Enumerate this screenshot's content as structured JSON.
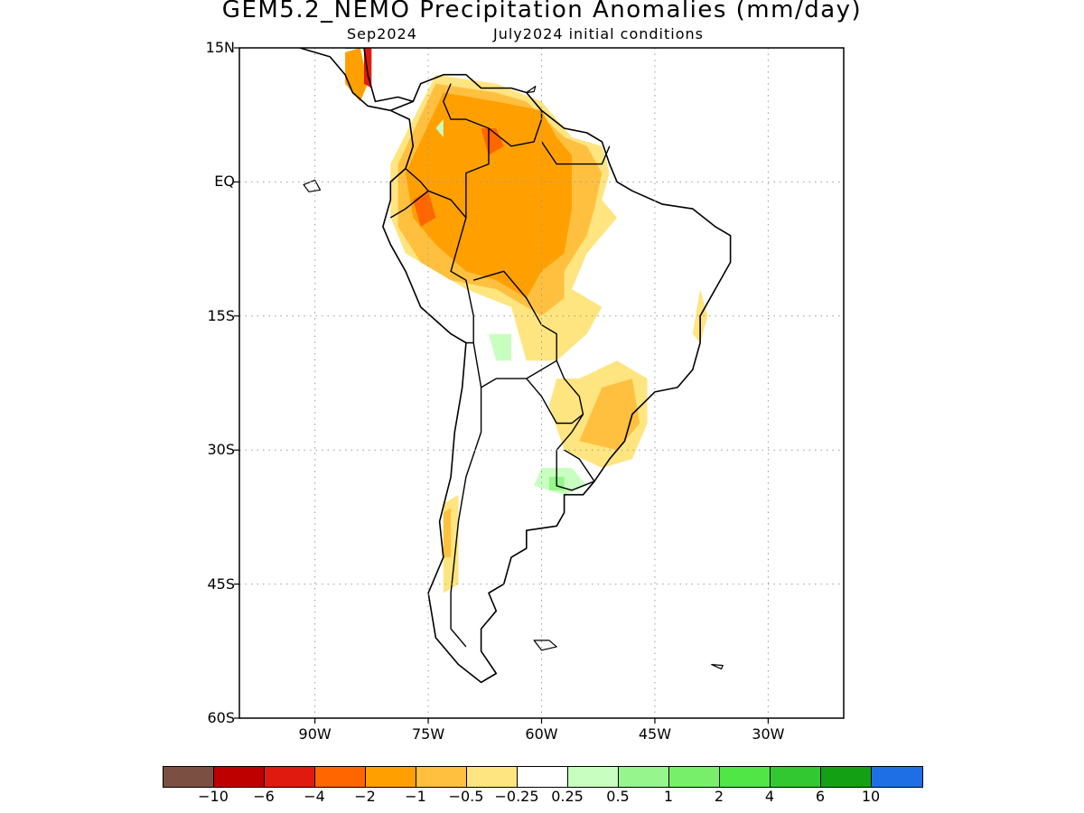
{
  "title": "GEM5.2_NEMO Precipitation Anomalies (mm/day)",
  "subtitle_month": "Sep2024",
  "subtitle_ic": "July2024 initial conditions",
  "lat_labels": [
    "15N",
    "EQ",
    "15S",
    "30S",
    "45S",
    "60S"
  ],
  "lon_labels": [
    "90W",
    "75W",
    "60W",
    "45W",
    "30W"
  ],
  "legend": {
    "colors": [
      "#7b4f42",
      "#bf0000",
      "#e01a0e",
      "#ff6600",
      "#ffa000",
      "#ffc040",
      "#ffe580",
      "#ffffff",
      "#c8ffc0",
      "#96f58c",
      "#78ef6a",
      "#50e646",
      "#32c832",
      "#14a014",
      "#1e6ee6"
    ],
    "labels": [
      "−10",
      "−6",
      "−4",
      "−2",
      "−1",
      "−0.5",
      "−0.25",
      "0.25",
      "0.5",
      "1",
      "2",
      "4",
      "6",
      "10"
    ]
  },
  "map": {
    "extent": {
      "lon": [
        -100,
        -20
      ],
      "lat": [
        -60,
        15
      ]
    },
    "colors": {
      "ocean": "#ffffff",
      "land": "#ffffff",
      "coast": "#000000",
      "lt_neg_025": "#ffe580",
      "lt_neg_05": "#ffc040",
      "lt_neg_1": "#ffa000",
      "lt_neg_2": "#ff6600",
      "lt_neg_4": "#e01a0e",
      "gt_025": "#c8ffc0",
      "gt_05": "#96f58c"
    }
  }
}
